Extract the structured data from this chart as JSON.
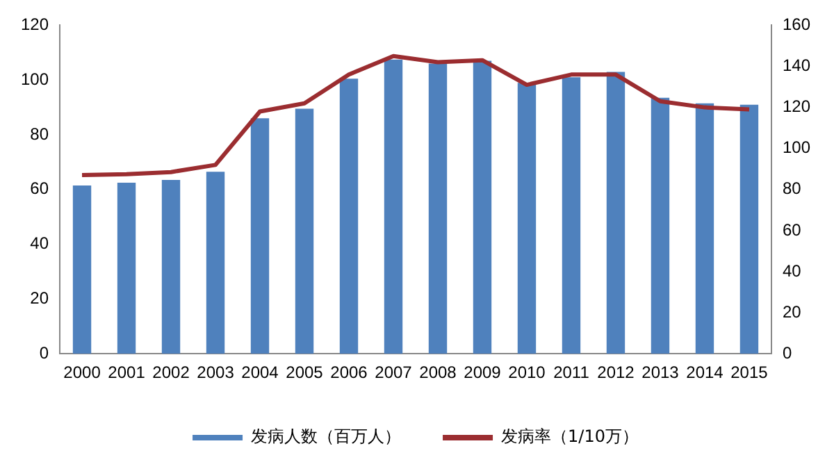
{
  "chart_data": {
    "type": "bar",
    "categories": [
      "2000",
      "2001",
      "2002",
      "2003",
      "2004",
      "2005",
      "2006",
      "2007",
      "2008",
      "2009",
      "2010",
      "2011",
      "2012",
      "2013",
      "2014",
      "2015"
    ],
    "series": [
      {
        "name": "发病人数（百万人）",
        "color": "#4f81bd",
        "values": [
          61.5,
          62.5,
          63.5,
          66.5,
          86,
          89.5,
          100.5,
          107.5,
          106,
          107,
          99,
          101,
          103,
          93.5,
          91.5,
          91
        ]
      },
      {
        "name": "发病率（1/10万）",
        "type": "line",
        "axis": "y2",
        "color": "#9b2d30",
        "values": [
          87,
          87.5,
          88.5,
          92,
          118,
          122,
          136,
          145,
          142,
          143,
          131,
          136,
          136,
          123,
          120,
          119
        ]
      }
    ],
    "ylim": [
      0,
      120
    ],
    "yticks": [
      0,
      20,
      40,
      60,
      80,
      100,
      120
    ],
    "y2lim": [
      0,
      160
    ],
    "y2ticks": [
      0,
      20,
      40,
      60,
      80,
      100,
      120,
      140,
      160
    ],
    "grid": false,
    "legend": "bottom",
    "marker": "none",
    "line_style": "solid"
  }
}
